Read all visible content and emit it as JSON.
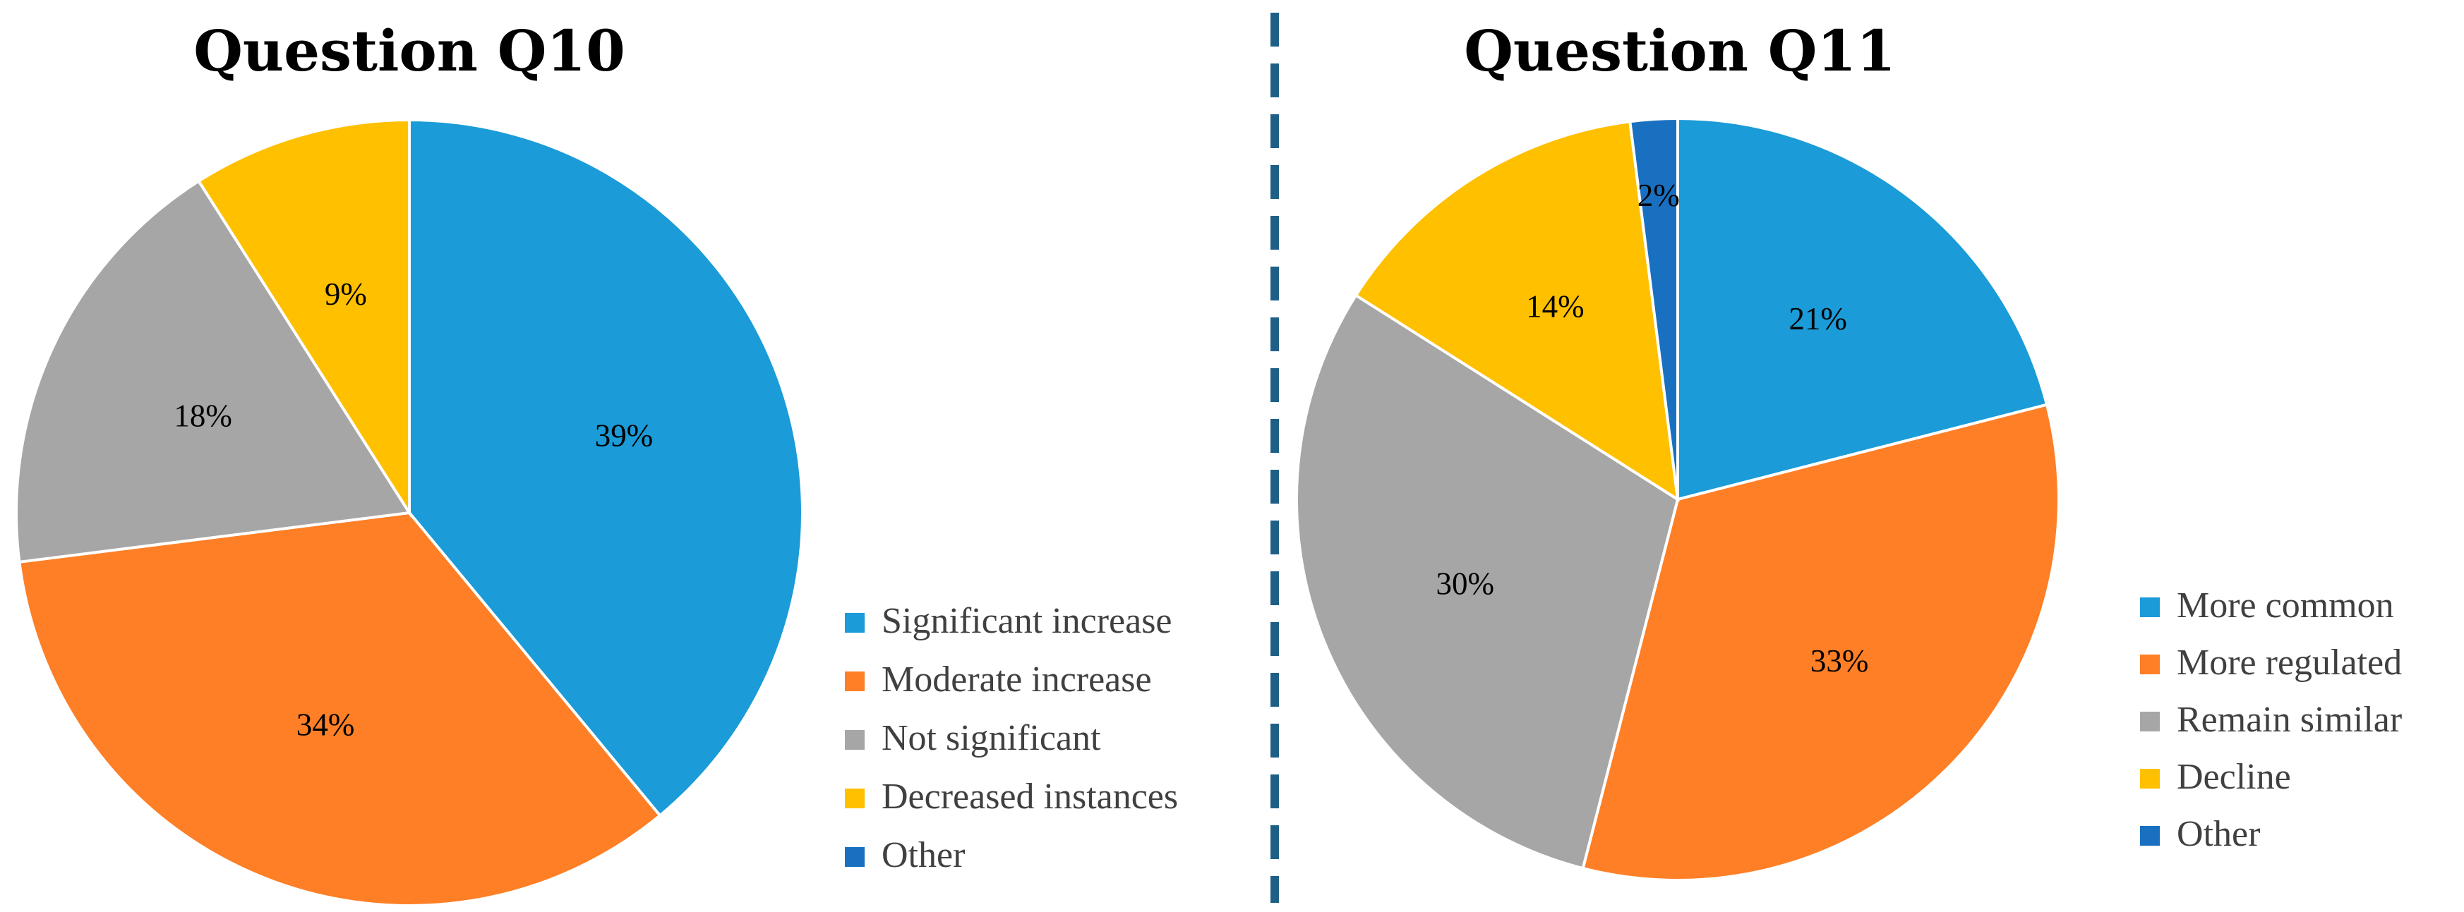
{
  "chart_data": [
    {
      "type": "pie",
      "title": "Question Q10",
      "slices": [
        {
          "label": "Significant increase",
          "value": 39,
          "display": "39%",
          "color": "#1B9BD7"
        },
        {
          "label": "Moderate increase",
          "value": 34,
          "display": "34%",
          "color": "#FE7F26"
        },
        {
          "label": "Not significant",
          "value": 18,
          "display": "18%",
          "color": "#A6A6A6"
        },
        {
          "label": "Decreased instances",
          "value": 9,
          "display": "9%",
          "color": "#FFC000"
        },
        {
          "label": "Other",
          "value": 0,
          "display": "",
          "color": "#1A70C0"
        }
      ],
      "legend_position": "right"
    },
    {
      "type": "pie",
      "title": "Question Q11",
      "slices": [
        {
          "label": "More common",
          "value": 21,
          "display": "21%",
          "color": "#1B9BD7"
        },
        {
          "label": "More regulated",
          "value": 33,
          "display": "33%",
          "color": "#FE7F26"
        },
        {
          "label": "Remain similar",
          "value": 30,
          "display": "30%",
          "color": "#A6A6A6"
        },
        {
          "label": "Decline",
          "value": 14,
          "display": "14%",
          "color": "#FFC000"
        },
        {
          "label": "Other",
          "value": 2,
          "display": "2%",
          "color": "#1A70C0"
        }
      ],
      "legend_position": "right"
    }
  ],
  "separator_color": "#1F5F86"
}
